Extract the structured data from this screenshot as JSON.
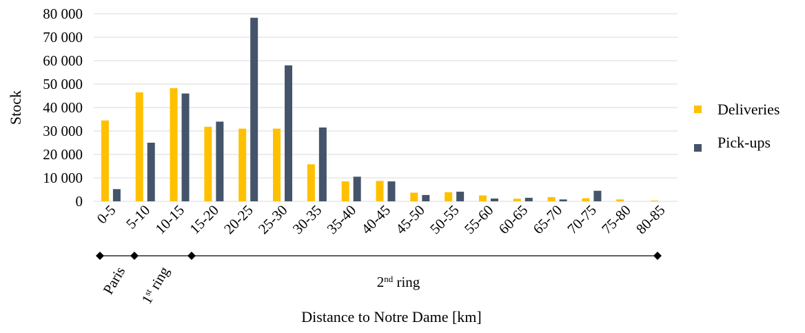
{
  "chart_data": {
    "type": "bar",
    "ylabel": "Stock",
    "xlabel": "Distance to Notre Dame [km]",
    "ylim": [
      0,
      80000
    ],
    "yticks": [
      0,
      10000,
      20000,
      30000,
      40000,
      50000,
      60000,
      70000,
      80000
    ],
    "ytick_labels": [
      "0",
      "10 000",
      "20 000",
      "30 000",
      "40 000",
      "50 000",
      "60 000",
      "70 000",
      "80 000"
    ],
    "grid": true,
    "legend_position": "right",
    "categories": [
      "0-5",
      "5-10",
      "10-15",
      "15-20",
      "20-25",
      "25-30",
      "30-35",
      "35-40",
      "40-45",
      "45-50",
      "50-55",
      "55-60",
      "60-65",
      "65-70",
      "70-75",
      "75-80",
      "80-85"
    ],
    "series": [
      {
        "name": "Deliveries",
        "color": "#FFC000",
        "values": [
          34500,
          46500,
          48300,
          31800,
          31000,
          31000,
          15800,
          8500,
          8700,
          3700,
          3900,
          2500,
          1100,
          1800,
          1300,
          800,
          300
        ]
      },
      {
        "name": "Pick-ups",
        "color": "#44546A",
        "values": [
          5200,
          25000,
          46000,
          34000,
          78300,
          58000,
          31500,
          10500,
          8500,
          2700,
          4100,
          1200,
          1500,
          800,
          4500,
          0,
          0
        ]
      }
    ],
    "regions": [
      {
        "label": "Paris",
        "start": 0,
        "end": 1
      },
      {
        "label_main": "1",
        "label_sup": "st",
        "label_rest": " ring",
        "start": 1,
        "end": 3
      },
      {
        "label_main": "2",
        "label_sup": "nd",
        "label_rest": " ring",
        "start": 3,
        "end": 17
      }
    ]
  }
}
